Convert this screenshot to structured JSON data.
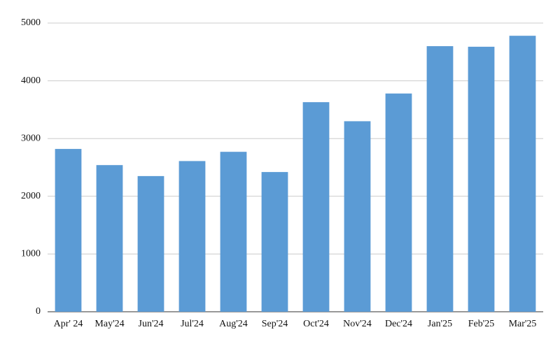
{
  "chart_data": {
    "type": "bar",
    "categories": [
      "Apr' 24",
      "May'24",
      "Jun'24",
      "Jul'24",
      "Aug'24",
      "Sep'24",
      "Oct'24",
      "Nov'24",
      "Dec'24",
      "Jan'25",
      "Feb'25",
      "Mar'25"
    ],
    "values": [
      2820,
      2540,
      2350,
      2610,
      2770,
      2420,
      3630,
      3300,
      3780,
      4600,
      4590,
      4780
    ],
    "color": "#5b9bd5",
    "ylim": [
      0,
      5000
    ],
    "yticks": [
      0,
      1000,
      2000,
      3000,
      4000,
      5000
    ],
    "grid": true
  }
}
